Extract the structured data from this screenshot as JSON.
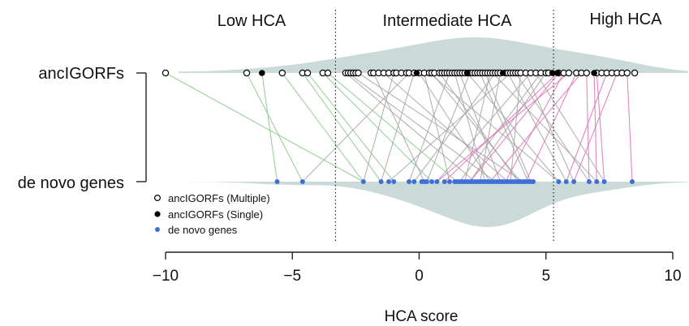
{
  "chart_data": {
    "type": "scatter",
    "xlabel": "HCA score",
    "xlim": [
      -10,
      10
    ],
    "x_ticks": [
      -10,
      -5,
      0,
      5,
      10
    ],
    "x_tick_labels": [
      "−10",
      "−5",
      "0",
      "5",
      "10"
    ],
    "thresholds": [
      -3.3,
      5.3
    ],
    "regions": [
      "Low HCA",
      "Intermediate HCA",
      "High HCA"
    ],
    "rows": [
      "ancIGORFs",
      "de novo genes"
    ],
    "legend": {
      "placement": "bottom-left",
      "entries": [
        "ancIGORFs (Multiple)",
        "ancIGORFs (Single)",
        "de novo genes"
      ]
    },
    "colors": {
      "violin": "#c9dad9",
      "low_link": "#8cc88a",
      "mid_link": "#a6a6a6",
      "high_link": "#e070b8",
      "denovo_point": "#3f6fd6",
      "anc_single": "#000000",
      "anc_multiple_stroke": "#000000"
    },
    "series": {
      "anc_multiple": [
        -10.0,
        -6.8,
        -5.4,
        -4.6,
        -4.4,
        -3.8,
        -3.6,
        -2.9,
        -2.8,
        -2.7,
        -2.6,
        -2.5,
        -2.4,
        -1.9,
        -1.8,
        -1.6,
        -1.4,
        -1.2,
        -1.0,
        -0.9,
        -0.7,
        -0.5,
        -0.4,
        -0.2,
        0.0,
        0.2,
        0.4,
        0.5,
        0.6,
        0.8,
        0.9,
        1.0,
        1.1,
        1.2,
        1.3,
        1.4,
        1.5,
        1.6,
        1.7,
        1.8,
        1.9,
        2.0,
        2.1,
        2.2,
        2.3,
        2.4,
        2.5,
        2.6,
        2.7,
        2.8,
        2.9,
        3.0,
        3.1,
        3.2,
        3.4,
        3.5,
        3.6,
        3.7,
        3.8,
        3.9,
        4.0,
        4.2,
        4.4,
        4.6,
        4.8,
        5.0,
        5.1,
        5.5,
        5.7,
        5.9,
        6.2,
        6.4,
        6.6,
        7.0,
        7.2,
        7.4,
        7.6,
        7.8,
        8.0,
        8.2,
        8.5
      ],
      "anc_single": [
        -6.2,
        -0.1,
        1.9,
        3.3,
        5.25,
        5.45,
        6.9
      ],
      "denovo": [
        -5.6,
        -4.6,
        -2.2,
        -1.5,
        -1.2,
        -1.0,
        -0.4,
        -0.2,
        0.1,
        0.2,
        0.3,
        0.5,
        0.7,
        1.0,
        1.2,
        1.4,
        1.5,
        1.6,
        1.7,
        1.8,
        1.9,
        2.0,
        2.1,
        2.2,
        2.3,
        2.4,
        2.5,
        2.6,
        2.7,
        2.8,
        2.9,
        3.0,
        3.1,
        3.2,
        3.3,
        3.4,
        3.5,
        3.6,
        3.7,
        3.8,
        3.9,
        4.0,
        4.1,
        4.2,
        4.3,
        4.4,
        4.5,
        5.5,
        5.8,
        6.1,
        6.7,
        7.0,
        7.3,
        8.4
      ],
      "links": [
        [
          -10.0,
          -2.2
        ],
        [
          -6.8,
          -4.6
        ],
        [
          -6.2,
          -5.6
        ],
        [
          -5.4,
          -2.2
        ],
        [
          -4.6,
          -1.5
        ],
        [
          -4.4,
          -1.0
        ],
        [
          -3.8,
          0.5
        ],
        [
          -3.6,
          1.5
        ],
        [
          -2.9,
          2.2
        ],
        [
          -2.8,
          3.0
        ],
        [
          -2.4,
          4.1
        ],
        [
          -1.8,
          0.2
        ],
        [
          -0.4,
          -4.6
        ],
        [
          -1.0,
          -2.2
        ],
        [
          -0.2,
          -1.5
        ],
        [
          0.0,
          2.8
        ],
        [
          0.2,
          1.2
        ],
        [
          0.5,
          4.0
        ],
        [
          1.2,
          -0.4
        ],
        [
          1.6,
          3.2
        ],
        [
          2.0,
          0.3
        ],
        [
          2.4,
          4.3
        ],
        [
          2.8,
          1.8
        ],
        [
          3.2,
          2.4
        ],
        [
          3.6,
          -1.2
        ],
        [
          4.0,
          3.6
        ],
        [
          4.4,
          0.7
        ],
        [
          5.0,
          2.0
        ],
        [
          1.9,
          5.5
        ],
        [
          2.6,
          4.4
        ],
        [
          0.8,
          3.9
        ],
        [
          -1.4,
          3.5
        ],
        [
          3.0,
          -0.2
        ],
        [
          4.8,
          1.6
        ],
        [
          1.4,
          2.6
        ],
        [
          5.5,
          2.0
        ],
        [
          5.7,
          3.4
        ],
        [
          5.9,
          0.7
        ],
        [
          6.2,
          4.2
        ],
        [
          6.4,
          2.8
        ],
        [
          6.6,
          6.7
        ],
        [
          7.0,
          7.3
        ],
        [
          7.4,
          5.8
        ],
        [
          7.8,
          6.1
        ],
        [
          8.2,
          8.4
        ],
        [
          6.9,
          7.0
        ],
        [
          5.45,
          1.0
        ],
        [
          4.2,
          6.1
        ],
        [
          3.5,
          5.8
        ],
        [
          2.9,
          7.0
        ],
        [
          4.6,
          7.3
        ],
        [
          3.8,
          6.7
        ],
        [
          0.4,
          5.5
        ]
      ]
    }
  }
}
